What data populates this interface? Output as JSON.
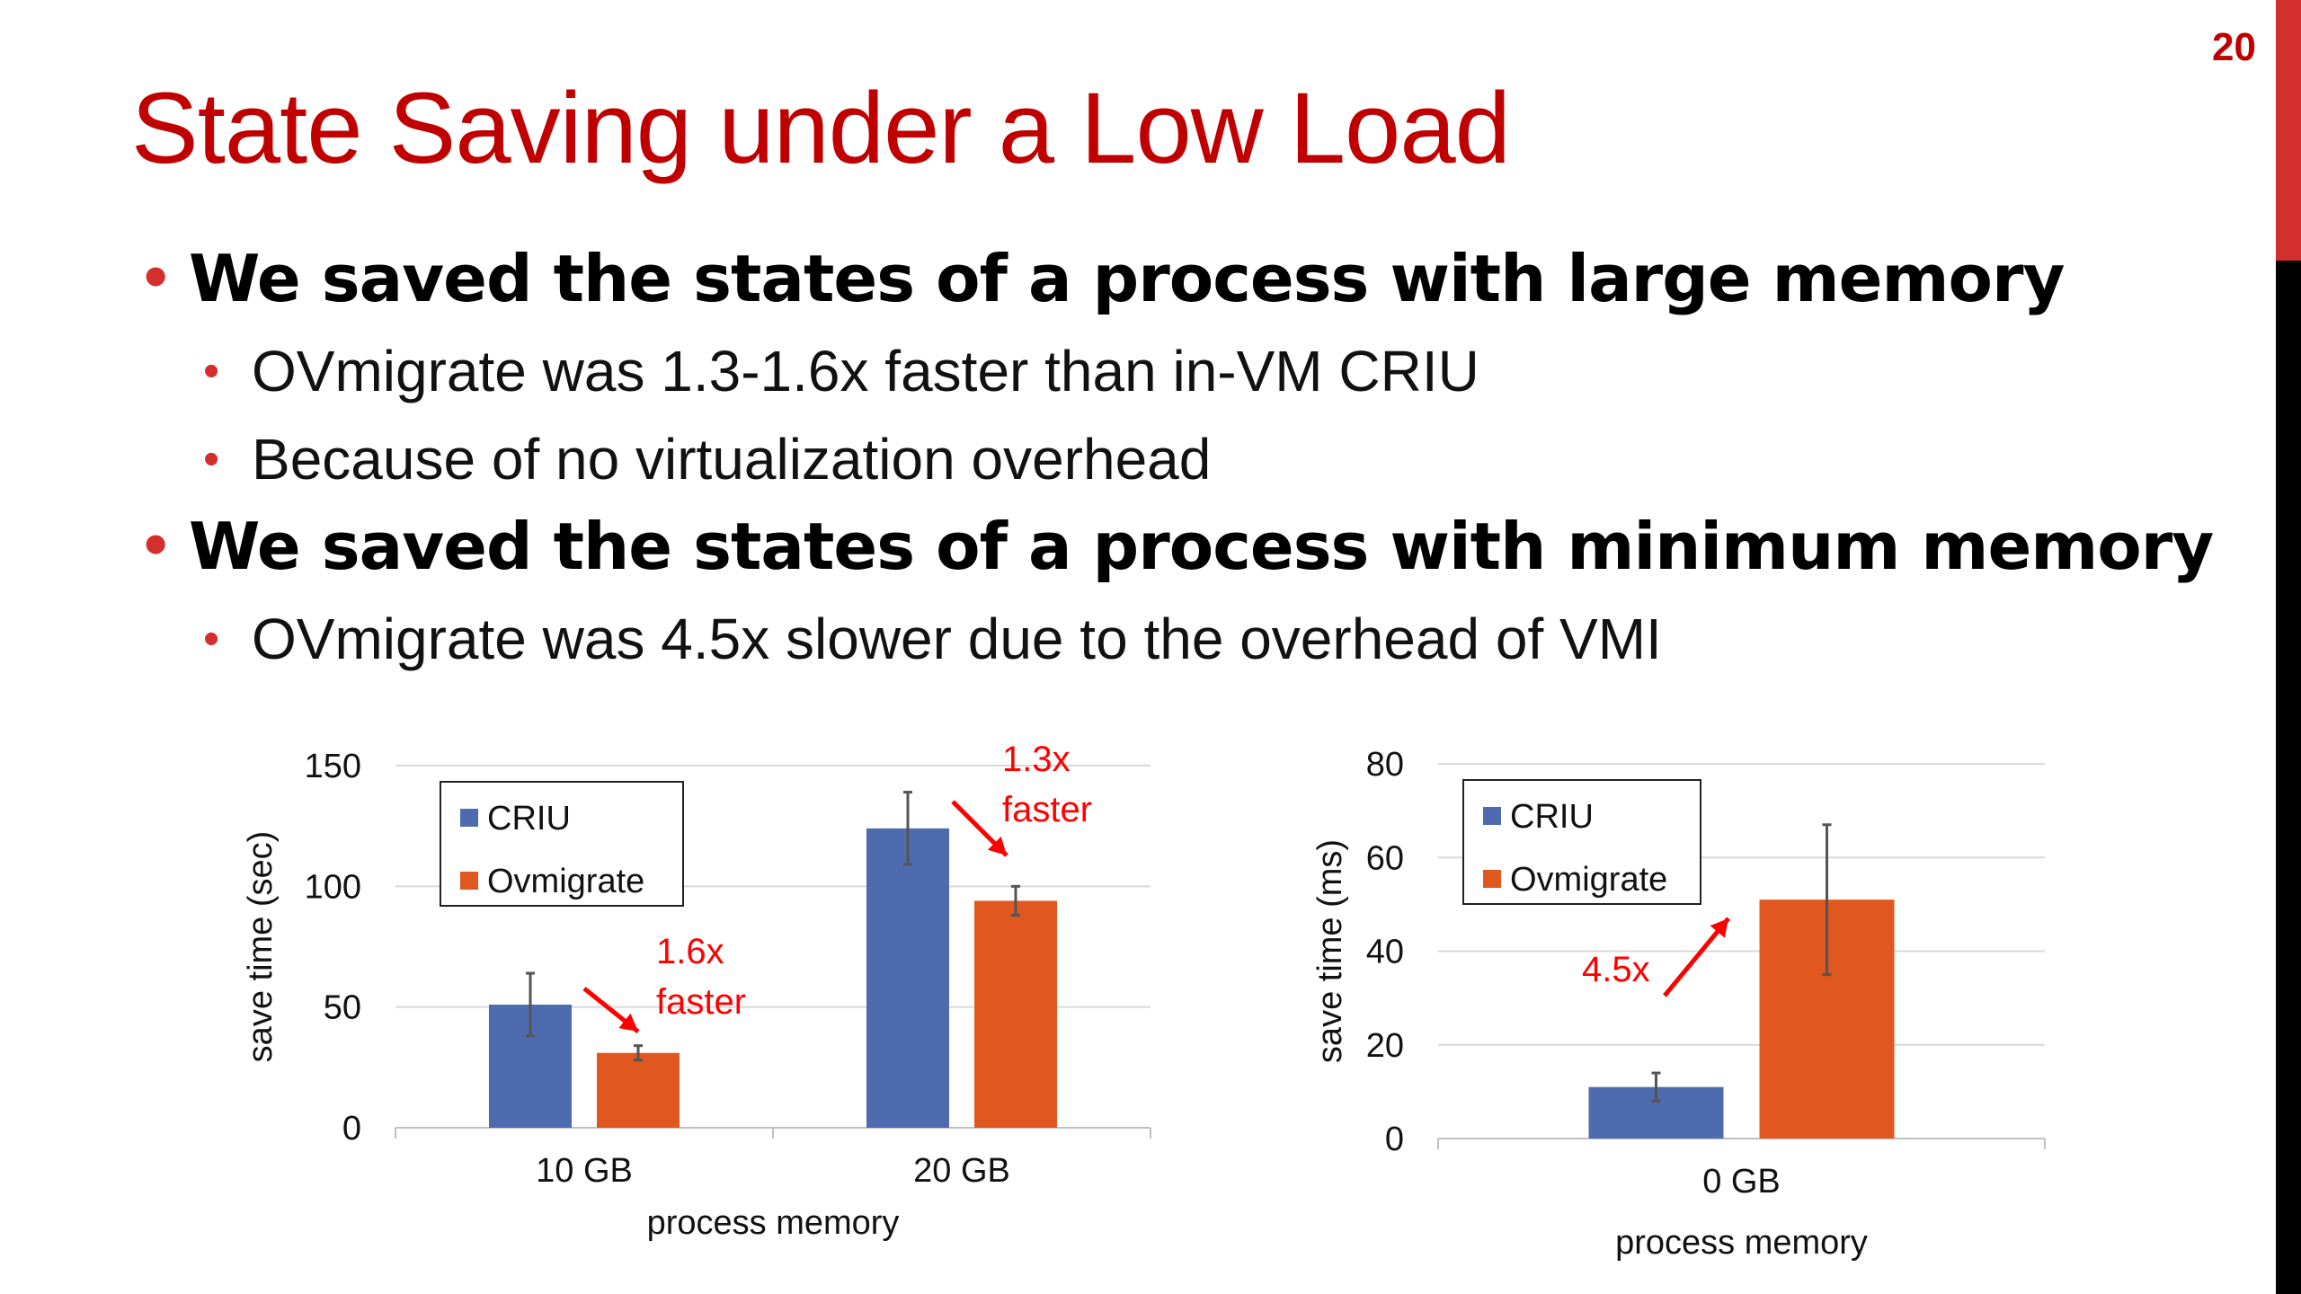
{
  "slide": {
    "page_number": "20",
    "title": "State Saving under a Low Load",
    "bullets": [
      {
        "level": 1,
        "text": "We saved the states of a process with large memory"
      },
      {
        "level": 2,
        "text": "OVmigrate was 1.3-1.6x faster than in-VM CRIU"
      },
      {
        "level": 2,
        "text": "Because of no virtualization overhead"
      },
      {
        "level": 1,
        "text": "We saved the states of a process with minimum memory"
      },
      {
        "level": 2,
        "text": "OVmigrate was 4.5x slower due to the overhead of VMI"
      }
    ]
  },
  "colors": {
    "accent": "#c00000",
    "criu": "#4f6bb0",
    "ovmigrate": "#e0581f",
    "annotation": "#ff0000"
  },
  "chart_data": [
    {
      "type": "bar",
      "categories": [
        "10 GB",
        "20 GB"
      ],
      "series": [
        {
          "name": "CRIU",
          "values": [
            51,
            124
          ],
          "error": [
            13,
            15
          ]
        },
        {
          "name": "Ovmigrate",
          "values": [
            31,
            94
          ],
          "error": [
            3,
            6
          ]
        }
      ],
      "xlabel": "process memory",
      "ylabel": "save time (sec)",
      "ylim": [
        0,
        150
      ],
      "yticks": [
        "0",
        "50",
        "100",
        "150"
      ],
      "grid": true,
      "legend": "top-left",
      "annotations": [
        {
          "lines": [
            "1.6x",
            "faster"
          ],
          "category": "10 GB"
        },
        {
          "lines": [
            "1.3x",
            "faster"
          ],
          "category": "20 GB"
        }
      ]
    },
    {
      "type": "bar",
      "categories": [
        "0 GB"
      ],
      "series": [
        {
          "name": "CRIU",
          "values": [
            11
          ],
          "error": [
            3
          ]
        },
        {
          "name": "Ovmigrate",
          "values": [
            51
          ],
          "error": [
            16
          ]
        }
      ],
      "xlabel": "process memory",
      "ylabel": "save time (ms)",
      "ylim": [
        0,
        80
      ],
      "yticks": [
        "0",
        "20",
        "40",
        "60",
        "80"
      ],
      "grid": true,
      "legend": "top-left",
      "annotations": [
        {
          "lines": [
            "4.5x"
          ],
          "category": "0 GB"
        }
      ]
    }
  ]
}
